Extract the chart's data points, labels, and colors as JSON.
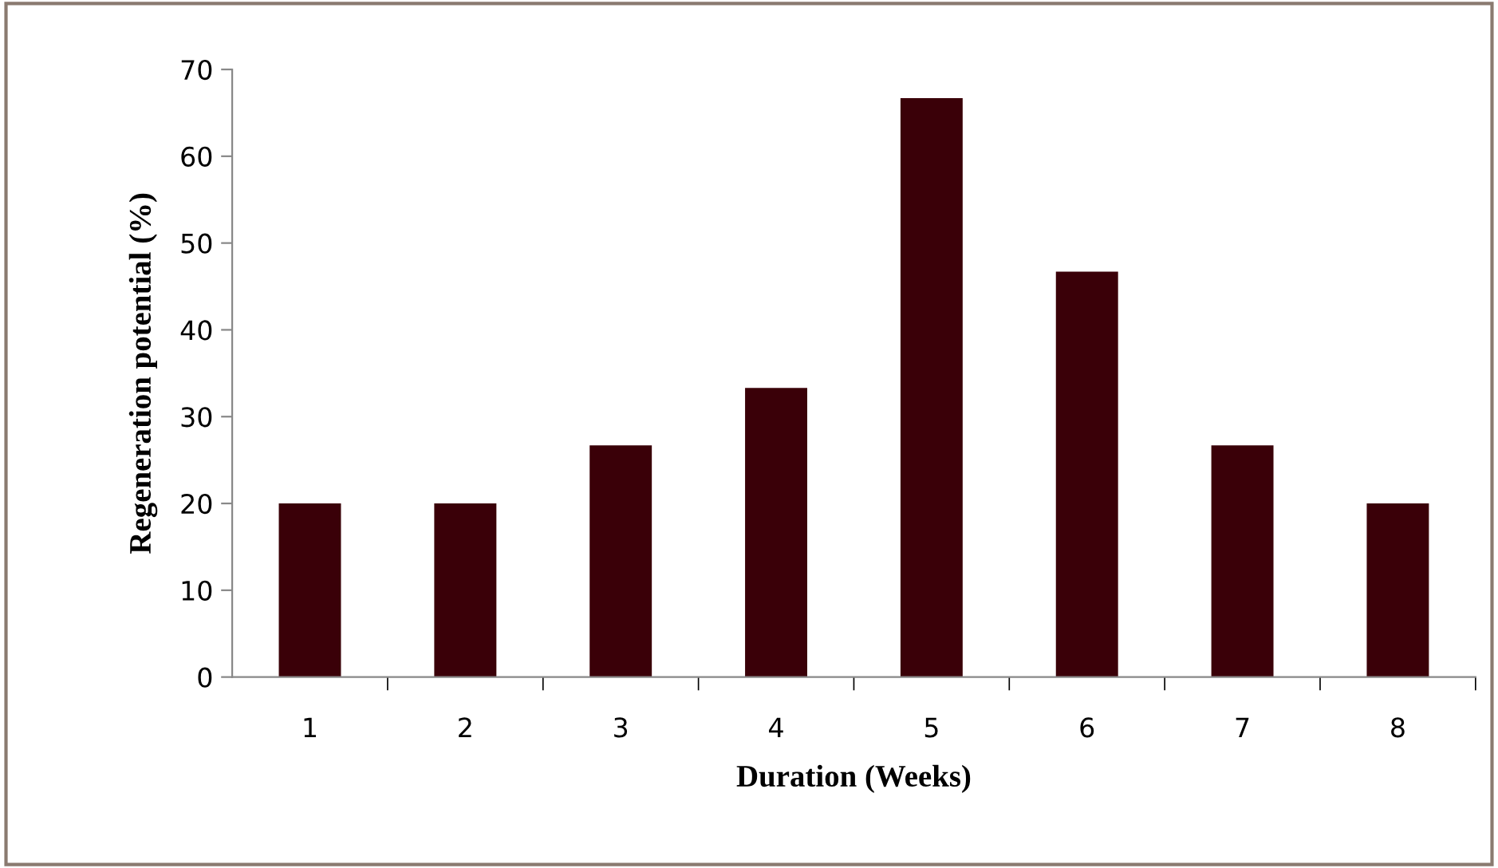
{
  "chart_data": {
    "type": "bar",
    "xlabel": "Duration (Weeks)",
    "ylabel": "Regeneration potential (%)",
    "categories": [
      "1",
      "2",
      "3",
      "4",
      "5",
      "6",
      "7",
      "8"
    ],
    "values": [
      20,
      20,
      26.7,
      33.3,
      66.7,
      46.7,
      26.7,
      20
    ],
    "color": "#3a0008",
    "ylim": [
      0,
      70
    ],
    "yticks": [
      0,
      10,
      20,
      30,
      40,
      50,
      60,
      70
    ],
    "grid": false
  }
}
